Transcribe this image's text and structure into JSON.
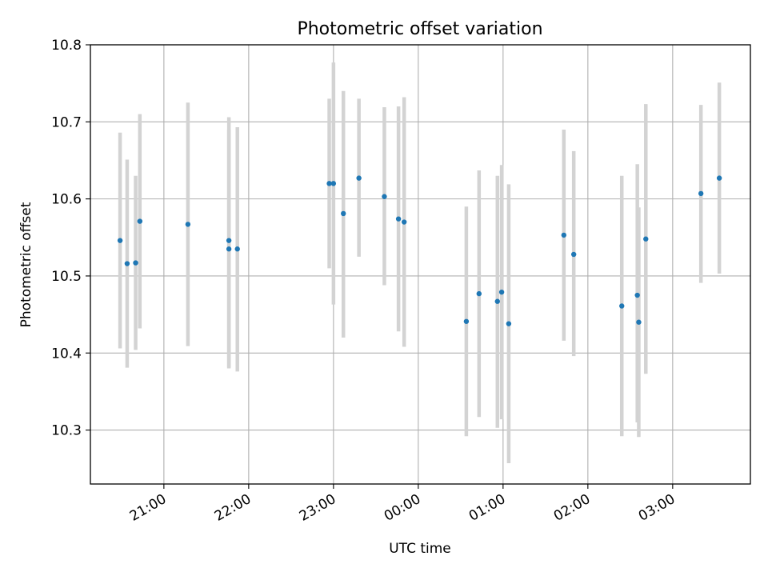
{
  "chart_data": {
    "type": "scatter",
    "title": "Photometric offset variation",
    "xlabel": "UTC time",
    "ylabel": "Photometric offset",
    "x_is_time_axis": true,
    "xlim": [
      "20:08",
      "03:55"
    ],
    "ylim": [
      10.23,
      10.8
    ],
    "grid": true,
    "x_ticks": [
      "21:00",
      "22:00",
      "23:00",
      "00:00",
      "01:00",
      "02:00",
      "03:00"
    ],
    "y_ticks": [
      10.3,
      10.4,
      10.5,
      10.6,
      10.7,
      10.8
    ],
    "y_tick_labels": [
      "10.3",
      "10.4",
      "10.5",
      "10.6",
      "10.7",
      "10.8"
    ],
    "colors": {
      "points": "#1f77b4",
      "error_bars": "#d3d3d3"
    },
    "points": [
      {
        "x": "20:29",
        "y": 10.546,
        "ylow": 10.406,
        "yhigh": 10.686
      },
      {
        "x": "20:34",
        "y": 10.516,
        "ylow": 10.381,
        "yhigh": 10.651
      },
      {
        "x": "20:40",
        "y": 10.517,
        "ylow": 10.404,
        "yhigh": 10.63
      },
      {
        "x": "20:43",
        "y": 10.571,
        "ylow": 10.432,
        "yhigh": 10.71
      },
      {
        "x": "21:17",
        "y": 10.567,
        "ylow": 10.409,
        "yhigh": 10.725
      },
      {
        "x": "21:46",
        "y": 10.546,
        "ylow": 10.38,
        "yhigh": 10.706
      },
      {
        "x": "21:46",
        "y": 10.535,
        "ylow": 10.381,
        "yhigh": 10.69
      },
      {
        "x": "21:52",
        "y": 10.535,
        "ylow": 10.376,
        "yhigh": 10.693
      },
      {
        "x": "22:57",
        "y": 10.62,
        "ylow": 10.51,
        "yhigh": 10.73
      },
      {
        "x": "23:00",
        "y": 10.62,
        "ylow": 10.463,
        "yhigh": 10.777
      },
      {
        "x": "23:07",
        "y": 10.581,
        "ylow": 10.42,
        "yhigh": 10.74
      },
      {
        "x": "23:18",
        "y": 10.627,
        "ylow": 10.525,
        "yhigh": 10.73
      },
      {
        "x": "23:36",
        "y": 10.603,
        "ylow": 10.488,
        "yhigh": 10.719
      },
      {
        "x": "23:46",
        "y": 10.574,
        "ylow": 10.428,
        "yhigh": 10.72
      },
      {
        "x": "23:50",
        "y": 10.57,
        "ylow": 10.408,
        "yhigh": 10.732
      },
      {
        "x": "00:34",
        "y": 10.441,
        "ylow": 10.292,
        "yhigh": 10.59
      },
      {
        "x": "00:43",
        "y": 10.477,
        "ylow": 10.317,
        "yhigh": 10.637
      },
      {
        "x": "00:56",
        "y": 10.467,
        "ylow": 10.303,
        "yhigh": 10.63
      },
      {
        "x": "00:59",
        "y": 10.479,
        "ylow": 10.314,
        "yhigh": 10.644
      },
      {
        "x": "01:04",
        "y": 10.438,
        "ylow": 10.257,
        "yhigh": 10.619
      },
      {
        "x": "01:43",
        "y": 10.553,
        "ylow": 10.416,
        "yhigh": 10.69
      },
      {
        "x": "01:50",
        "y": 10.528,
        "ylow": 10.396,
        "yhigh": 10.662
      },
      {
        "x": "02:24",
        "y": 10.461,
        "ylow": 10.292,
        "yhigh": 10.63
      },
      {
        "x": "02:35",
        "y": 10.475,
        "ylow": 10.31,
        "yhigh": 10.645
      },
      {
        "x": "02:36",
        "y": 10.44,
        "ylow": 10.291,
        "yhigh": 10.589
      },
      {
        "x": "02:41",
        "y": 10.548,
        "ylow": 10.373,
        "yhigh": 10.723
      },
      {
        "x": "03:20",
        "y": 10.607,
        "ylow": 10.491,
        "yhigh": 10.722
      },
      {
        "x": "03:33",
        "y": 10.627,
        "ylow": 10.503,
        "yhigh": 10.751
      }
    ]
  }
}
